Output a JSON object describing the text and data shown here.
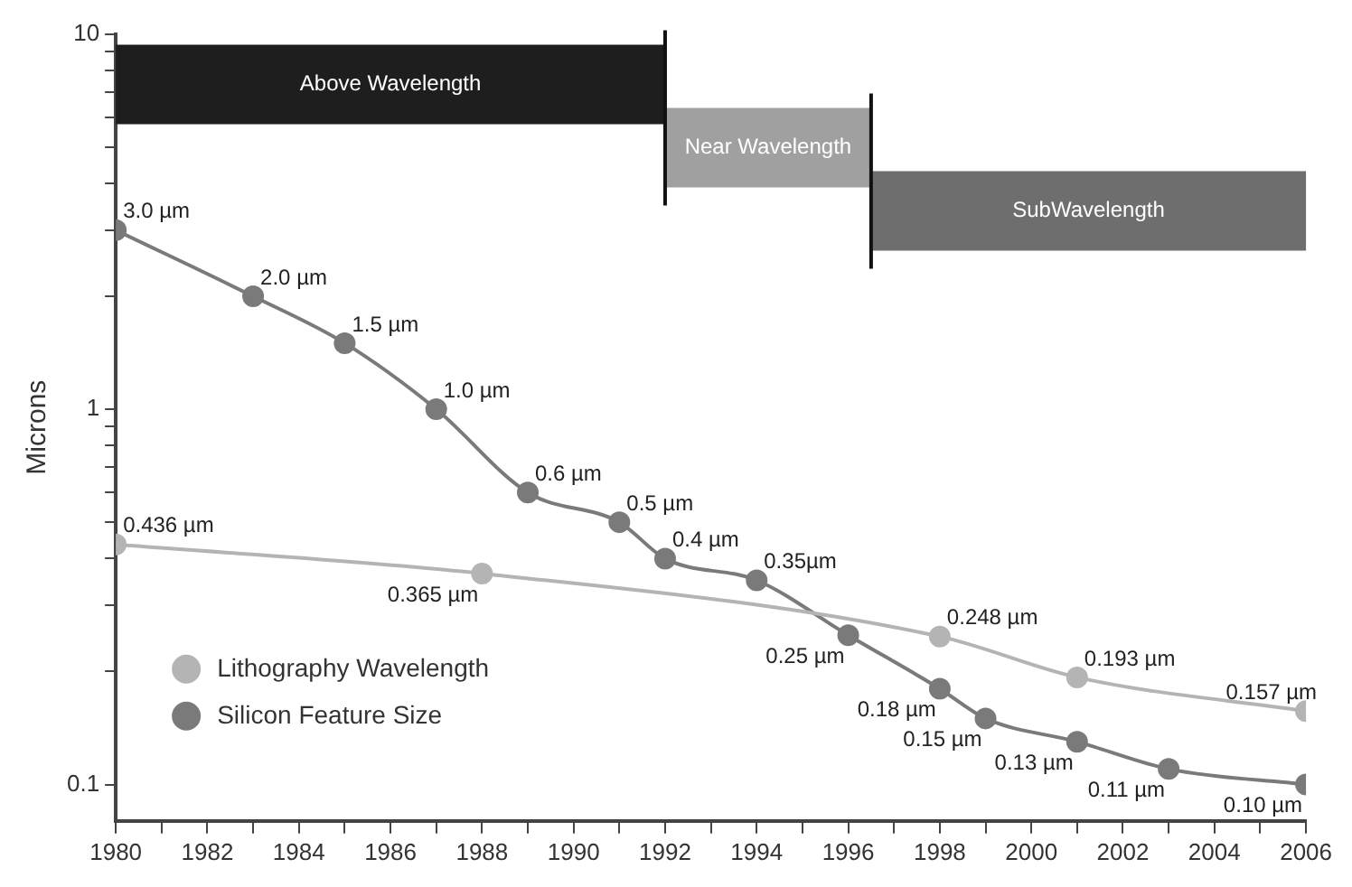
{
  "chart_data": {
    "type": "line",
    "ylabel": "Microns",
    "log": "y",
    "ylim": [
      0.08,
      10
    ],
    "yticks": [
      0.1,
      {
        "value": 0.2,
        "label": null
      },
      {
        "value": 0.3,
        "label": null
      },
      {
        "value": 0.4,
        "label": null
      },
      {
        "value": 0.5,
        "label": null
      },
      {
        "value": 0.6,
        "label": null
      },
      {
        "value": 0.7,
        "label": null
      },
      {
        "value": 0.8,
        "label": null
      },
      {
        "value": 0.9,
        "label": null
      },
      1,
      {
        "value": 2,
        "label": null
      },
      {
        "value": 3,
        "label": null
      },
      {
        "value": 4,
        "label": null
      },
      {
        "value": 5,
        "label": null
      },
      {
        "value": 6,
        "label": null
      },
      {
        "value": 7,
        "label": null
      },
      {
        "value": 8,
        "label": null
      },
      {
        "value": 9,
        "label": null
      },
      10
    ],
    "xlim": [
      1980,
      2006
    ],
    "xticks": [
      1980,
      {
        "value": 1981,
        "label": null
      },
      1982,
      {
        "value": 1983,
        "label": null
      },
      1984,
      {
        "value": 1985,
        "label": null
      },
      1986,
      {
        "value": 1987,
        "label": null
      },
      1988,
      {
        "value": 1989,
        "label": null
      },
      1990,
      {
        "value": 1991,
        "label": null
      },
      1992,
      {
        "value": 1993,
        "label": null
      },
      1994,
      {
        "value": 1995,
        "label": null
      },
      1996,
      {
        "value": 1997,
        "label": null
      },
      1998,
      {
        "value": 1999,
        "label": null
      },
      2000,
      {
        "value": 2001,
        "label": null
      },
      2002,
      {
        "value": 2003,
        "label": null
      },
      2004,
      {
        "value": 2005,
        "label": null
      },
      2006
    ],
    "grid": false,
    "legend": "bottom left",
    "marker": "circle",
    "line_style": "solid",
    "series": [
      {
        "name": "Lithography Wavelength",
        "color": "#b4b4b4",
        "x": [
          1980,
          1988,
          1998,
          2001,
          2006
        ],
        "values": [
          0.436,
          0.365,
          0.248,
          0.193,
          0.157
        ],
        "value_labels": [
          "0.436 µm",
          "0.365 µm",
          "0.248 µm",
          "0.193 µm",
          "0.157 µm"
        ]
      },
      {
        "name": "Silicon Feature Size",
        "color": "#7a7a7a",
        "x": [
          1980,
          1983,
          1985,
          1987,
          1989,
          1991,
          1992,
          1994,
          1996,
          1998,
          1999,
          2001,
          2003,
          2006
        ],
        "values": [
          3.0,
          2.0,
          1.5,
          1.0,
          0.6,
          0.5,
          0.4,
          0.35,
          0.25,
          0.18,
          0.15,
          0.13,
          0.11,
          0.1
        ],
        "value_labels": [
          "3.0 µm",
          "2.0 µm",
          "1.5 µm",
          "1.0 µm",
          "0.6 µm",
          "0.5 µm",
          "0.4 µm",
          "0.35µm",
          "0.25 µm",
          "0.18 µm",
          "0.15 µm",
          "0.13 µm",
          "0.11 µm",
          "0.10 µm"
        ]
      }
    ],
    "ref_lines": [
      {
        "axis": "x",
        "value": 1992,
        "color": "#111111"
      },
      {
        "axis": "x",
        "value": 1996.5,
        "color": "#111111"
      }
    ],
    "bands": [
      {
        "axis": "x",
        "from": 1980,
        "to": 1992,
        "label": "Above Wavelength",
        "color": "#1e1e1e"
      },
      {
        "axis": "x",
        "from": 1992,
        "to": 1996.5,
        "label": "Near Wavelength",
        "color": "#a0a0a0"
      },
      {
        "axis": "x",
        "from": 1996.5,
        "to": 2006,
        "label": "SubWavelength",
        "color": "#6e6e6e"
      }
    ]
  }
}
